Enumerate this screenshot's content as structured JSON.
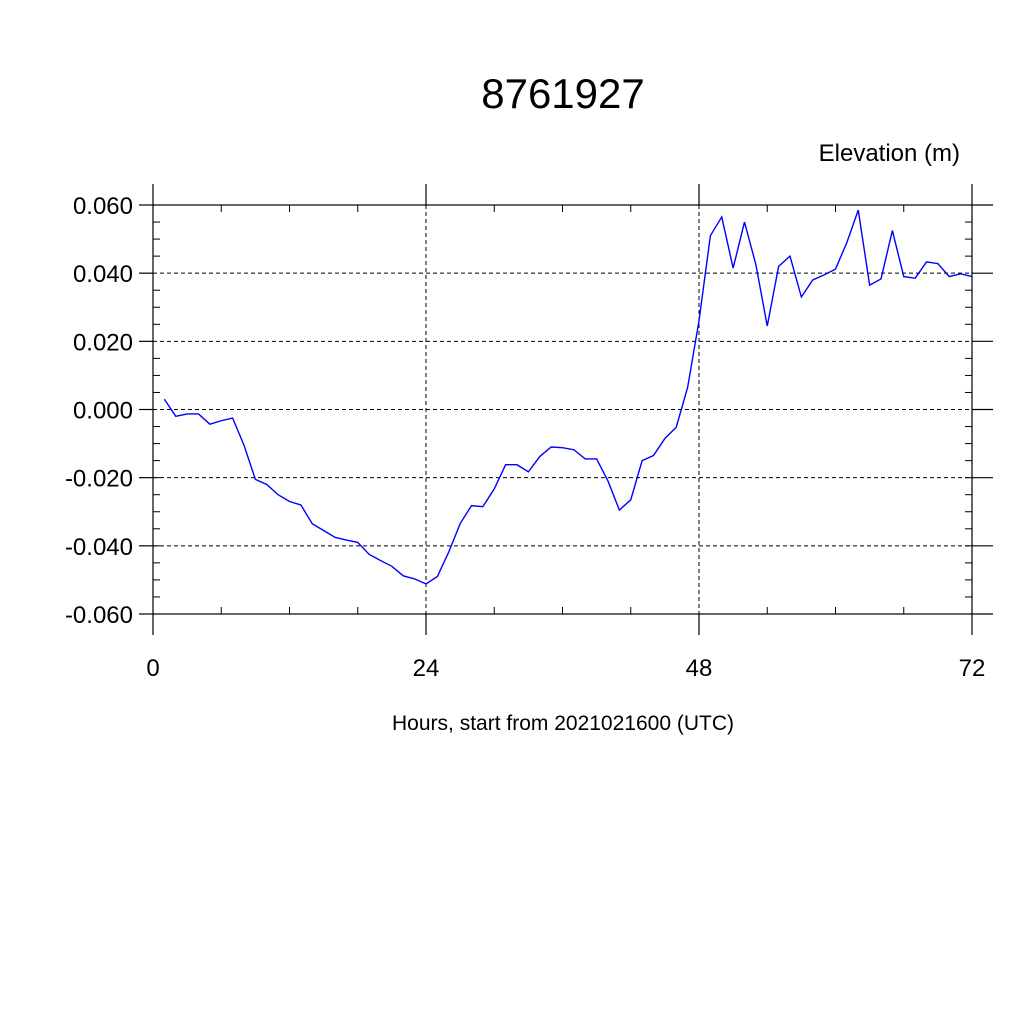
{
  "chart_data": {
    "type": "line",
    "title": "8761927",
    "ylabel": "Elevation (m)",
    "xlabel": "Hours, start from 2021021600 (UTC)",
    "xlim": [
      0,
      72
    ],
    "ylim": [
      -0.06,
      0.06
    ],
    "x_ticks": [
      0,
      24,
      48,
      72
    ],
    "x_tick_labels": [
      "0",
      "24",
      "48",
      "72"
    ],
    "y_ticks": [
      0.06,
      0.04,
      0.02,
      0.0,
      -0.02,
      -0.04,
      -0.06
    ],
    "y_tick_labels": [
      "0.060",
      "0.040",
      "0.020",
      "0.000",
      "-0.020",
      "-0.040",
      "-0.060"
    ],
    "grid": true,
    "line_color": "#0000ff",
    "series": [
      {
        "x": [
          1,
          2,
          3,
          4,
          5,
          6,
          7,
          8,
          9,
          10,
          11,
          12,
          13,
          14,
          15,
          16,
          17,
          18,
          19,
          20,
          21,
          22,
          23,
          24,
          25,
          26,
          27,
          28,
          29,
          30,
          31,
          32,
          33,
          34,
          35,
          36,
          37,
          38,
          39,
          40,
          41,
          42,
          43,
          44,
          45,
          46,
          47,
          48,
          49,
          50,
          51,
          52,
          53,
          54,
          55,
          56,
          57,
          58,
          59,
          60,
          61,
          62,
          63,
          64,
          65,
          66,
          67,
          68,
          69,
          70,
          71,
          72
        ],
        "values": [
          0.003,
          -0.002,
          -0.0013,
          -0.0013,
          -0.0043,
          -0.0033,
          -0.0025,
          -0.0105,
          -0.0205,
          -0.022,
          -0.025,
          -0.027,
          -0.028,
          -0.0335,
          -0.0355,
          -0.0375,
          -0.0383,
          -0.039,
          -0.0425,
          -0.0443,
          -0.046,
          -0.0488,
          -0.0497,
          -0.0512,
          -0.049,
          -0.0418,
          -0.0335,
          -0.0282,
          -0.0285,
          -0.0233,
          -0.0162,
          -0.0162,
          -0.0183,
          -0.0138,
          -0.011,
          -0.0112,
          -0.0118,
          -0.0145,
          -0.0145,
          -0.021,
          -0.0295,
          -0.0265,
          -0.015,
          -0.0135,
          -0.0085,
          -0.0052,
          0.0065,
          0.026,
          0.051,
          0.0565,
          0.0415,
          0.055,
          0.0425,
          0.0245,
          0.042,
          0.045,
          0.033,
          0.038,
          0.0395,
          0.0412,
          0.049,
          0.0585,
          0.0365,
          0.0383,
          0.0525,
          0.039,
          0.0385,
          0.0433,
          0.0428,
          0.039,
          0.0398,
          0.039
        ]
      }
    ]
  }
}
